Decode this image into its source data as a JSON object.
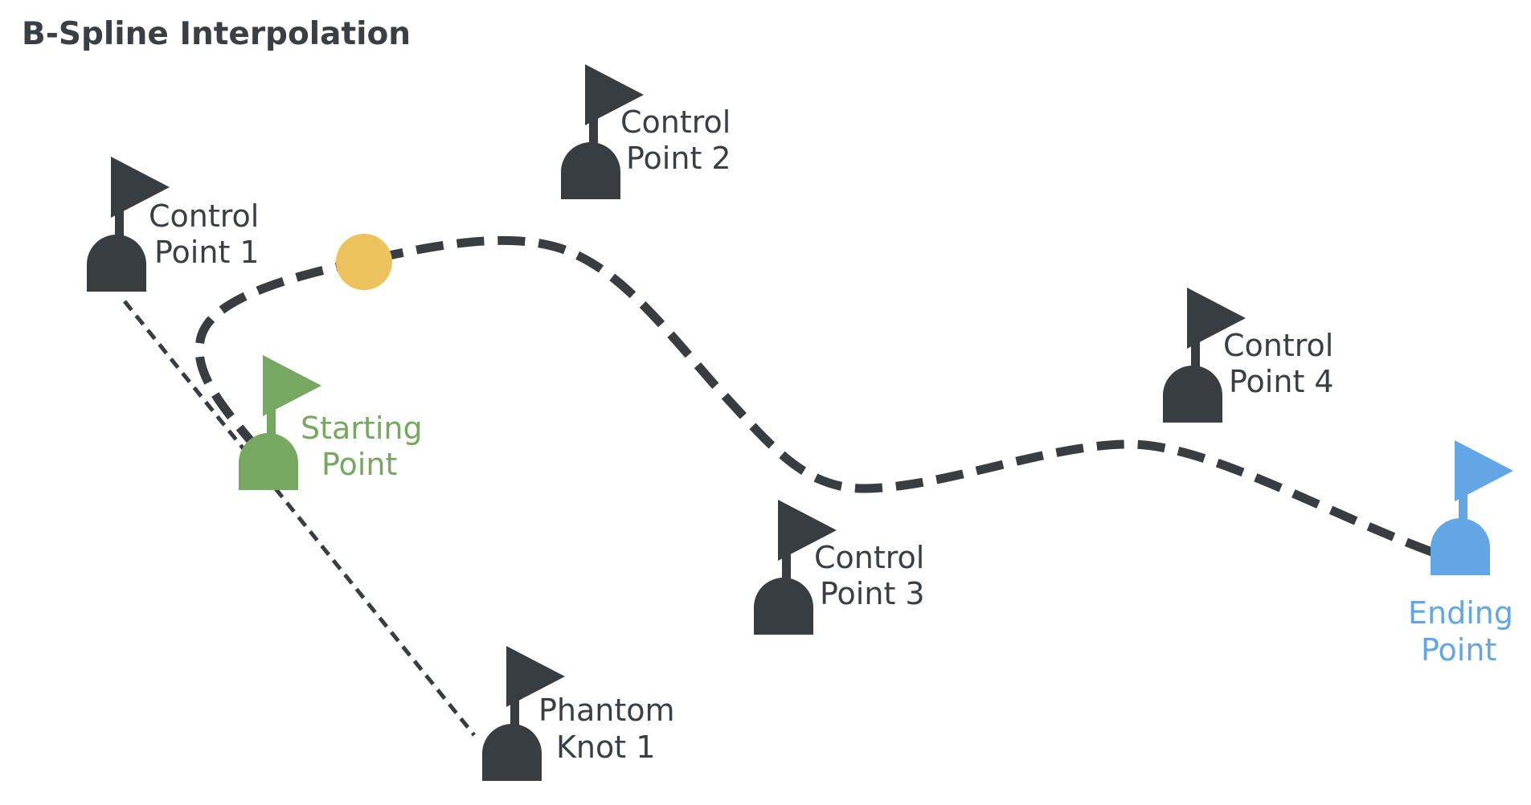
{
  "title": "B-Spline Interpolation",
  "colors": {
    "dark": "#383d42",
    "start": "#77a862",
    "end": "#62a6e6",
    "handle": "#ecc25c"
  },
  "points": {
    "control_1": {
      "line1": "Control",
      "line2": "Point 1"
    },
    "control_2": {
      "line1": "Control",
      "line2": "Point 2"
    },
    "control_3": {
      "line1": "Control",
      "line2": "Point 3"
    },
    "control_4": {
      "line1": "Control",
      "line2": "Point 4"
    },
    "phantom_1": {
      "line1": "Phantom",
      "line2": "Knot 1"
    },
    "start": {
      "line1": "Starting",
      "line2": "Point"
    },
    "end": {
      "line1": "Ending",
      "line2": "Point"
    }
  },
  "icons": {
    "marker": "flag-marker-icon",
    "handle": "circle-handle-icon"
  }
}
